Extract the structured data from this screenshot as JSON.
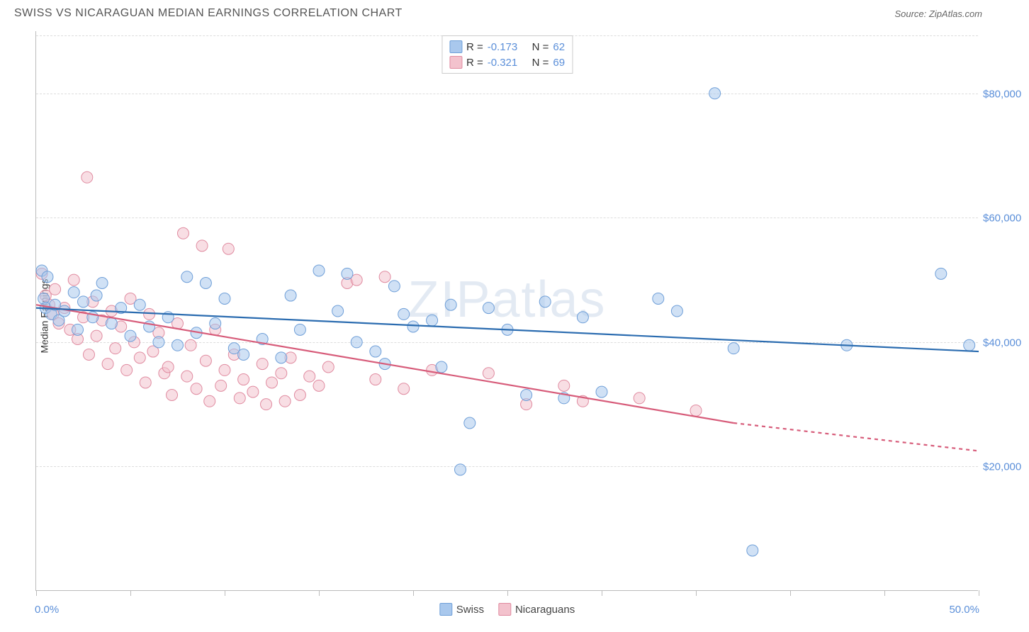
{
  "title": "SWISS VS NICARAGUAN MEDIAN EARNINGS CORRELATION CHART",
  "source_label": "Source: ZipAtlas.com",
  "watermark": "ZIPatlas",
  "y_axis_label": "Median Earnings",
  "chart": {
    "type": "scatter",
    "x_domain": [
      0,
      50
    ],
    "y_domain": [
      0,
      90000
    ],
    "x_ticks": [
      0,
      5,
      10,
      15,
      20,
      25,
      30,
      35,
      40,
      45,
      50
    ],
    "x_tick_labels": {
      "0": "0.0%",
      "50": "50.0%"
    },
    "y_gridlines": [
      20000,
      40000,
      60000,
      80000
    ],
    "y_tick_labels": {
      "20000": "$20,000",
      "40000": "$40,000",
      "60000": "$60,000",
      "80000": "$80,000"
    },
    "grid_color": "#dddddd",
    "axis_color": "#bbbbbb",
    "tick_label_color": "#5b8fd9",
    "background_color": "#ffffff",
    "marker_radius": 8,
    "marker_opacity": 0.55,
    "line_width": 2.2
  },
  "series": {
    "swiss": {
      "label": "Swiss",
      "fill": "#a9c8ed",
      "stroke": "#6f9fd8",
      "line_color": "#2b6cb0",
      "r_value": "-0.173",
      "n_value": "62",
      "trend": {
        "x1": 0,
        "y1": 45500,
        "x2": 50,
        "y2": 38500
      },
      "points": [
        [
          0.3,
          51500
        ],
        [
          0.4,
          47000
        ],
        [
          0.5,
          45500
        ],
        [
          0.6,
          50500
        ],
        [
          0.8,
          44500
        ],
        [
          1.0,
          46000
        ],
        [
          1.2,
          43500
        ],
        [
          1.5,
          45000
        ],
        [
          2.0,
          48000
        ],
        [
          2.2,
          42000
        ],
        [
          2.5,
          46500
        ],
        [
          3.0,
          44000
        ],
        [
          3.2,
          47500
        ],
        [
          3.5,
          49500
        ],
        [
          4.0,
          43000
        ],
        [
          4.5,
          45500
        ],
        [
          5.0,
          41000
        ],
        [
          5.5,
          46000
        ],
        [
          6.0,
          42500
        ],
        [
          6.5,
          40000
        ],
        [
          7.0,
          44000
        ],
        [
          7.5,
          39500
        ],
        [
          8.0,
          50500
        ],
        [
          8.5,
          41500
        ],
        [
          9.0,
          49500
        ],
        [
          9.5,
          43000
        ],
        [
          10.0,
          47000
        ],
        [
          10.5,
          39000
        ],
        [
          11.0,
          38000
        ],
        [
          12.0,
          40500
        ],
        [
          13.0,
          37500
        ],
        [
          13.5,
          47500
        ],
        [
          14.0,
          42000
        ],
        [
          15.0,
          51500
        ],
        [
          16.0,
          45000
        ],
        [
          16.5,
          51000
        ],
        [
          17.0,
          40000
        ],
        [
          18.0,
          38500
        ],
        [
          18.5,
          36500
        ],
        [
          19.0,
          49000
        ],
        [
          19.5,
          44500
        ],
        [
          20.0,
          42500
        ],
        [
          21.0,
          43500
        ],
        [
          21.5,
          36000
        ],
        [
          22.0,
          46000
        ],
        [
          22.5,
          19500
        ],
        [
          23.0,
          27000
        ],
        [
          24.0,
          45500
        ],
        [
          25.0,
          42000
        ],
        [
          26.0,
          31500
        ],
        [
          27.0,
          46500
        ],
        [
          28.0,
          31000
        ],
        [
          29.0,
          44000
        ],
        [
          30.0,
          32000
        ],
        [
          33.0,
          47000
        ],
        [
          34.0,
          45000
        ],
        [
          36.0,
          80000
        ],
        [
          37.0,
          39000
        ],
        [
          38.0,
          6500
        ],
        [
          43.0,
          39500
        ],
        [
          48.0,
          51000
        ],
        [
          49.5,
          39500
        ]
      ]
    },
    "nicaraguans": {
      "label": "Nicaraguans",
      "fill": "#f3c2cd",
      "stroke": "#e08ba0",
      "line_color": "#d75c7a",
      "r_value": "-0.321",
      "n_value": "69",
      "trend_solid": {
        "x1": 0,
        "y1": 46000,
        "x2": 37,
        "y2": 27000
      },
      "trend_dashed": {
        "x1": 37,
        "y1": 27000,
        "x2": 50,
        "y2": 22500
      },
      "points": [
        [
          0.3,
          51000
        ],
        [
          0.5,
          47500
        ],
        [
          0.7,
          46000
        ],
        [
          0.9,
          44500
        ],
        [
          1.0,
          48500
        ],
        [
          1.2,
          43000
        ],
        [
          1.5,
          45500
        ],
        [
          1.8,
          42000
        ],
        [
          2.0,
          50000
        ],
        [
          2.2,
          40500
        ],
        [
          2.5,
          44000
        ],
        [
          2.7,
          66500
        ],
        [
          2.8,
          38000
        ],
        [
          3.0,
          46500
        ],
        [
          3.2,
          41000
        ],
        [
          3.5,
          43500
        ],
        [
          3.8,
          36500
        ],
        [
          4.0,
          45000
        ],
        [
          4.2,
          39000
        ],
        [
          4.5,
          42500
        ],
        [
          4.8,
          35500
        ],
        [
          5.0,
          47000
        ],
        [
          5.2,
          40000
        ],
        [
          5.5,
          37500
        ],
        [
          5.8,
          33500
        ],
        [
          6.0,
          44500
        ],
        [
          6.2,
          38500
        ],
        [
          6.5,
          41500
        ],
        [
          6.8,
          35000
        ],
        [
          7.0,
          36000
        ],
        [
          7.2,
          31500
        ],
        [
          7.5,
          43000
        ],
        [
          7.8,
          57500
        ],
        [
          8.0,
          34500
        ],
        [
          8.2,
          39500
        ],
        [
          8.5,
          32500
        ],
        [
          8.8,
          55500
        ],
        [
          9.0,
          37000
        ],
        [
          9.2,
          30500
        ],
        [
          9.5,
          42000
        ],
        [
          9.8,
          33000
        ],
        [
          10.0,
          35500
        ],
        [
          10.2,
          55000
        ],
        [
          10.5,
          38000
        ],
        [
          10.8,
          31000
        ],
        [
          11.0,
          34000
        ],
        [
          11.5,
          32000
        ],
        [
          12.0,
          36500
        ],
        [
          12.2,
          30000
        ],
        [
          12.5,
          33500
        ],
        [
          13.0,
          35000
        ],
        [
          13.2,
          30500
        ],
        [
          13.5,
          37500
        ],
        [
          14.0,
          31500
        ],
        [
          14.5,
          34500
        ],
        [
          15.0,
          33000
        ],
        [
          15.5,
          36000
        ],
        [
          16.5,
          49500
        ],
        [
          17.0,
          50000
        ],
        [
          18.0,
          34000
        ],
        [
          18.5,
          50500
        ],
        [
          19.5,
          32500
        ],
        [
          21.0,
          35500
        ],
        [
          24.0,
          35000
        ],
        [
          26.0,
          30000
        ],
        [
          28.0,
          33000
        ],
        [
          29.0,
          30500
        ],
        [
          32.0,
          31000
        ],
        [
          35.0,
          29000
        ]
      ]
    }
  },
  "legend_top": {
    "r_label": "R =",
    "n_label": "N ="
  }
}
